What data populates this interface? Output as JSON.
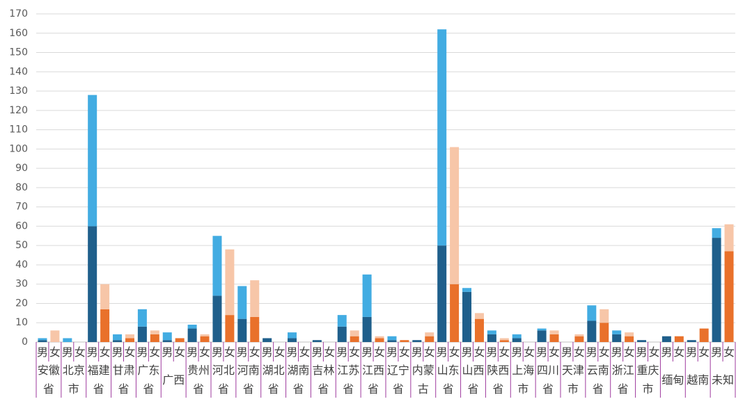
{
  "chart_data": {
    "type": "bar",
    "stacked": true,
    "categories": [
      "安徽省",
      "北京市",
      "福建省",
      "甘肃省",
      "广东省",
      "广西",
      "贵州省",
      "河北省",
      "河南省",
      "湖北省",
      "湖南省",
      "吉林省",
      "江苏省",
      "江西省",
      "辽宁省",
      "内蒙古",
      "山东省",
      "山西省",
      "陕西省",
      "上海市",
      "四川省",
      "天津市",
      "云南省",
      "浙江省",
      "重庆市",
      "缅甸",
      "越南",
      "未知"
    ],
    "subcategories": [
      "男",
      "女"
    ],
    "series": [
      {
        "group": 0,
        "color": "#1f5f8b",
        "values": [
          1,
          0,
          60,
          1,
          8,
          1,
          7,
          24,
          12,
          2,
          2,
          1,
          8,
          13,
          1,
          1,
          50,
          26,
          4,
          2,
          6,
          0,
          11,
          4,
          1,
          3,
          1,
          54
        ]
      },
      {
        "group": 0,
        "color": "#42ace2",
        "values": [
          1,
          2,
          68,
          3,
          9,
          4,
          2,
          31,
          17,
          0,
          3,
          0,
          6,
          22,
          2,
          0,
          112,
          2,
          2,
          2,
          1,
          0,
          8,
          2,
          0,
          0,
          0,
          5
        ]
      },
      {
        "group": 1,
        "color": "#e9712b",
        "values": [
          0,
          0,
          17,
          2,
          4,
          2,
          3,
          14,
          13,
          0,
          0,
          0,
          3,
          2,
          1,
          3,
          30,
          12,
          1,
          0,
          4,
          3,
          10,
          3,
          0,
          3,
          7,
          47
        ]
      },
      {
        "group": 1,
        "color": "#f7c6a8",
        "values": [
          6,
          0,
          13,
          2,
          2,
          0,
          1,
          34,
          19,
          0,
          0,
          0,
          3,
          1,
          0,
          2,
          71,
          3,
          1,
          0,
          2,
          1,
          7,
          2,
          0,
          0,
          0,
          14
        ]
      }
    ],
    "ylim": [
      0,
      170
    ],
    "yticks": [
      0,
      10,
      20,
      30,
      40,
      50,
      60,
      70,
      80,
      90,
      100,
      110,
      120,
      130,
      140,
      150,
      160,
      170
    ],
    "grid": true
  }
}
